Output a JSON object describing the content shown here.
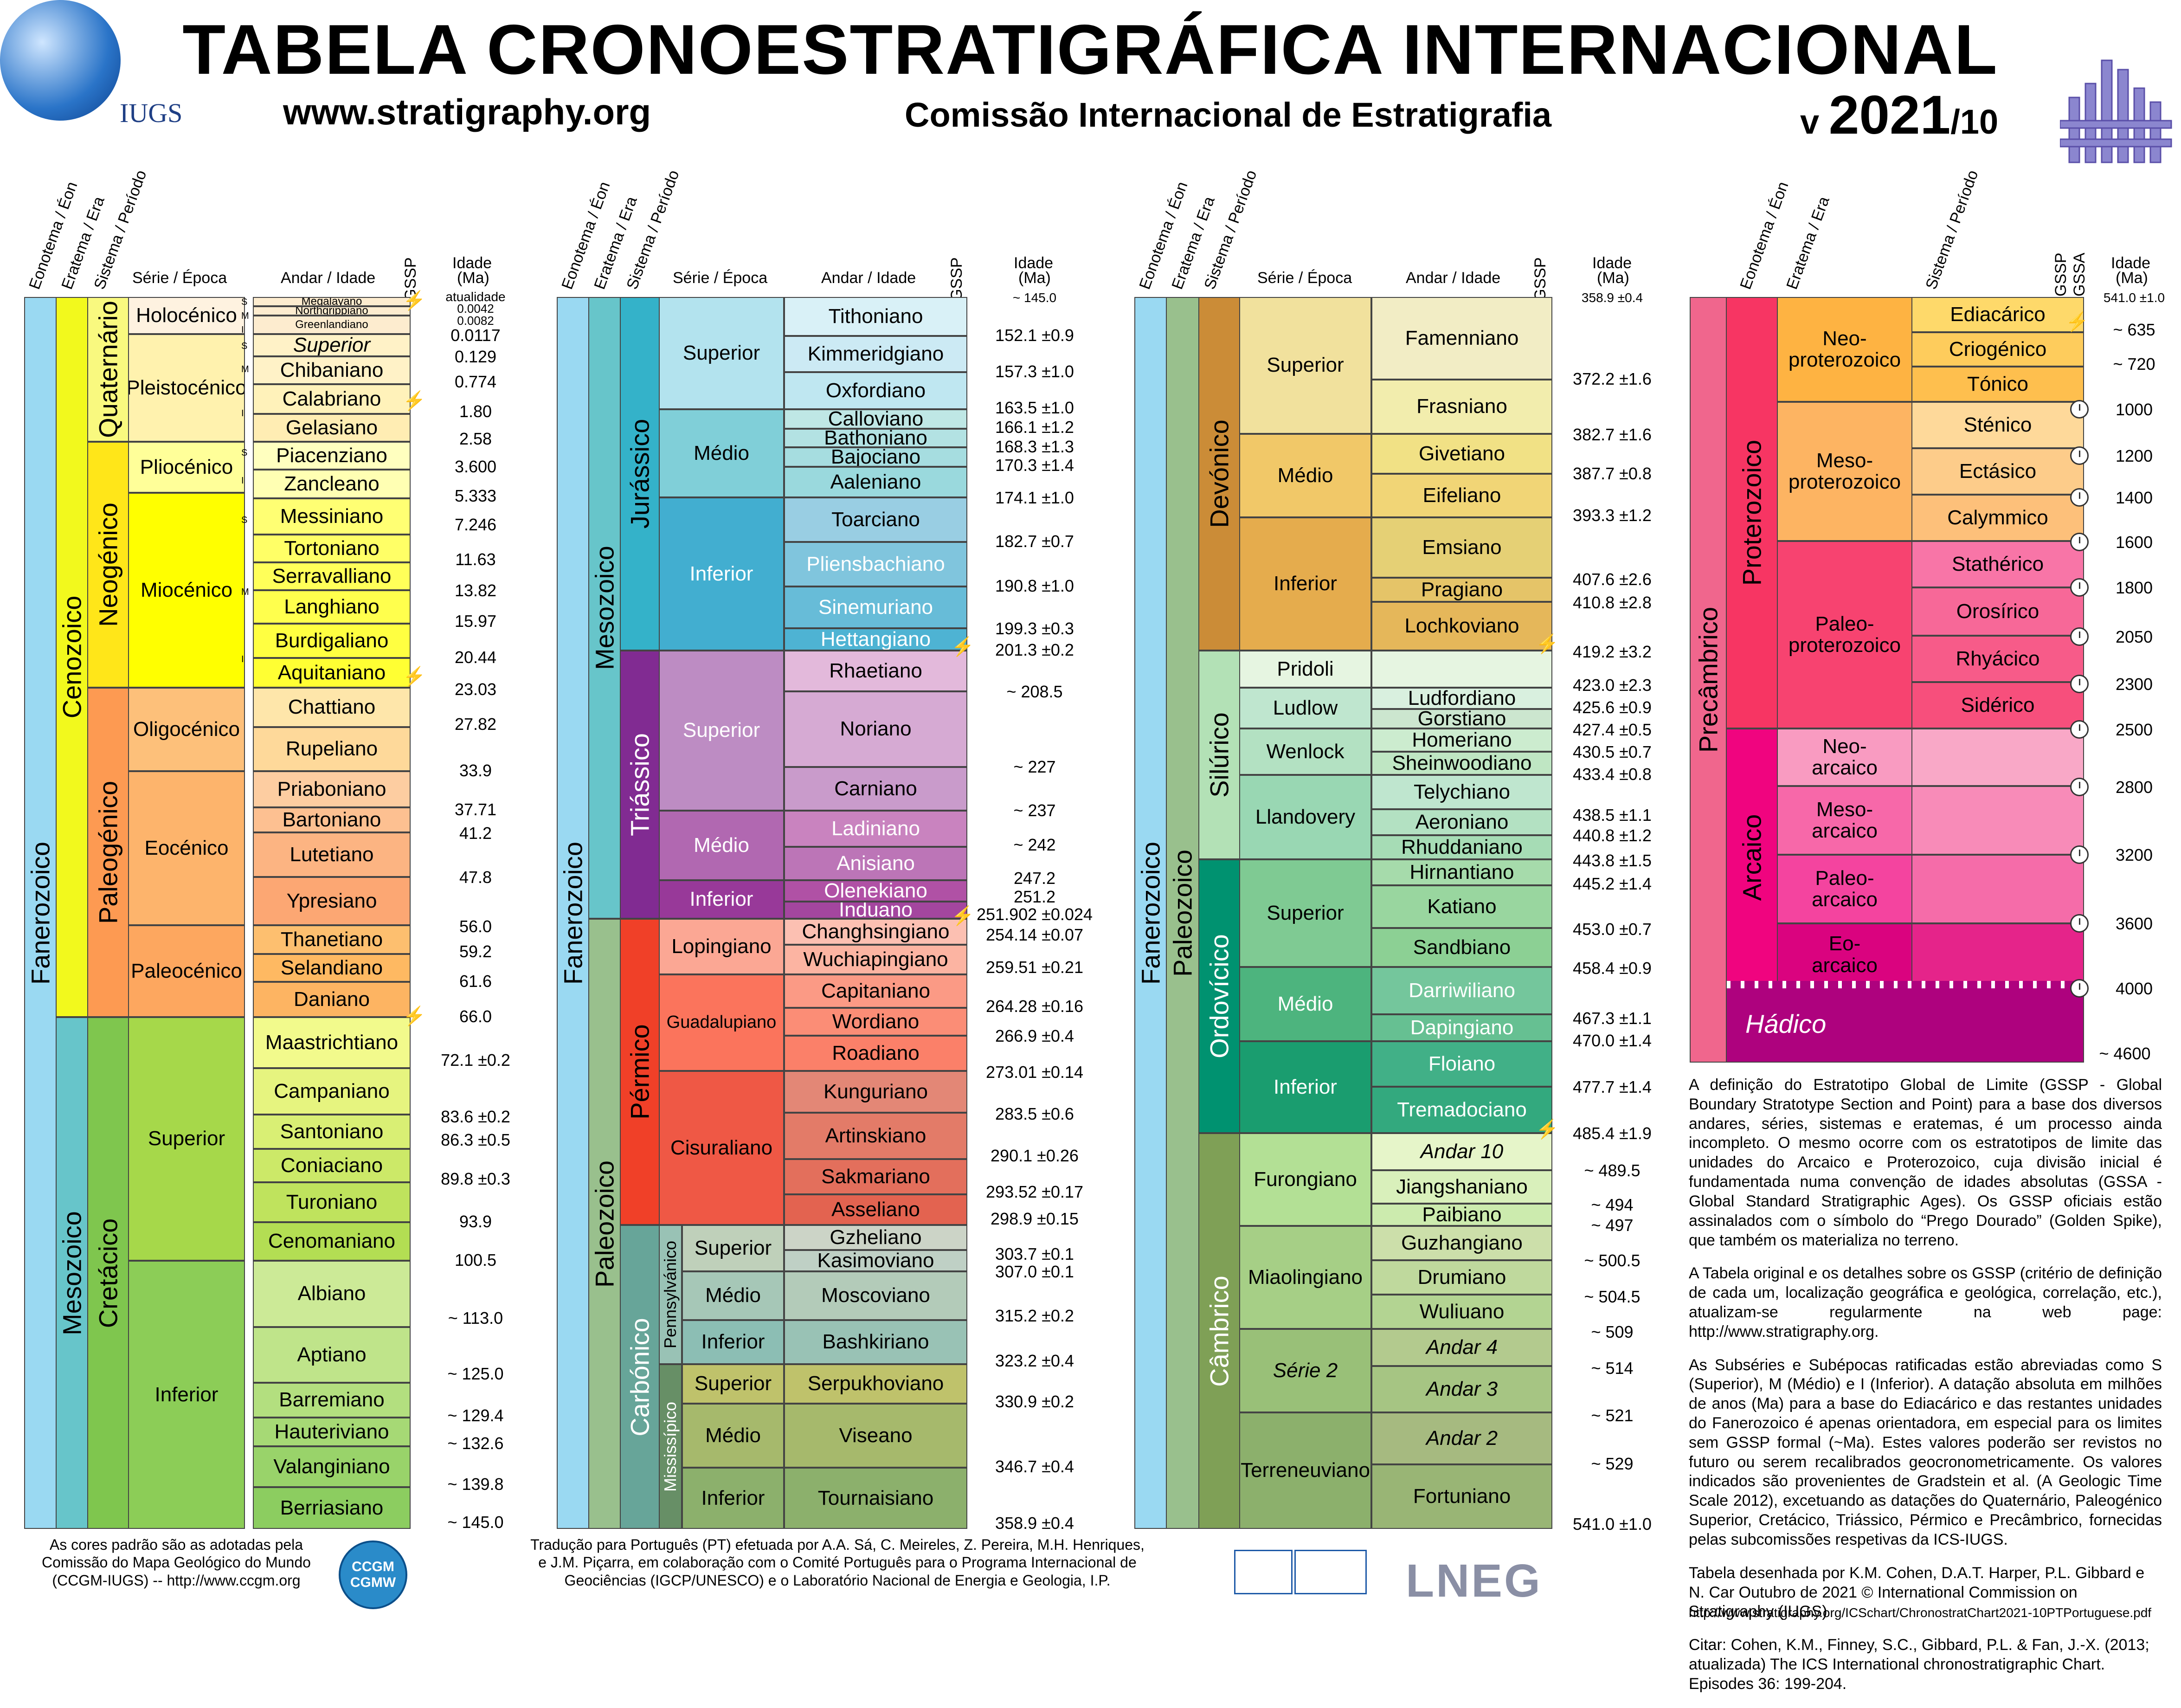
{
  "header": {
    "title": "TABELA CRONOESTRATIGRÁFICA INTERNACIONAL",
    "url": "www.stratigraphy.org",
    "commission": "Comissão Internacional de Estratigrafia",
    "version_prefix": "v ",
    "version_year": "2021",
    "version_suffix": "/10",
    "iugs_label": "IUGS"
  },
  "column_headers": {
    "eon": "Eonotema / Éon",
    "era": "Eratema / Era",
    "period": "Sistema / Período",
    "epoch": "Série / Época",
    "stage": "Andar / Idade",
    "gssp": "GSSP",
    "gssa": "GSSA",
    "age": "Idade",
    "age_unit": "(Ma)"
  },
  "col1": {
    "eon": "Fanerozoico",
    "era_ceno": "Cenozoico",
    "era_meso": "Mesozoico",
    "per_quat": "Quaternário",
    "per_neo": "Neogénico",
    "per_paleo": "Paleogénico",
    "per_cret": "Cretácico",
    "epochs": [
      "Holocénico",
      "Pleistocénico",
      "Pliocénico",
      "Miocénico",
      "Oligocénico",
      "Eocénico",
      "Paleocénico",
      "Superior",
      "Inferior"
    ],
    "stages": [
      "Megalayano",
      "Northgrippiano",
      "Greenlandiano",
      "Superior",
      "Chibaniano",
      "Calabriano",
      "Gelasiano",
      "Piacenziano",
      "Zancleano",
      "Messiniano",
      "Tortoniano",
      "Serravalliano",
      "Langhiano",
      "Burdigaliano",
      "Aquitaniano",
      "Chattiano",
      "Rupeliano",
      "Priaboniano",
      "Bartoniano",
      "Lutetiano",
      "Ypresiano",
      "Thanetiano",
      "Selandiano",
      "Daniano",
      "Maastrichtiano",
      "Campaniano",
      "Santoniano",
      "Coniaciano",
      "Turoniano",
      "Cenomaniano",
      "Albiano",
      "Aptiano",
      "Barremiano",
      "Hauteriviano",
      "Valanginiano",
      "Berriasiano"
    ],
    "subs": [
      "S",
      "M",
      "I",
      "S",
      "M",
      "I",
      "S",
      "I",
      "S",
      "M",
      "I"
    ],
    "ages": [
      "atualidade",
      "0.0042",
      "0.0082",
      "0.0117",
      "0.129",
      "0.774",
      "1.80",
      "2.58",
      "3.600",
      "5.333",
      "7.246",
      "11.63",
      "13.82",
      "15.97",
      "20.44",
      "23.03",
      "27.82",
      "33.9",
      "37.71",
      "41.2",
      "47.8",
      "56.0",
      "59.2",
      "61.6",
      "66.0",
      "72.1 ±0.2",
      "83.6 ±0.2",
      "86.3 ±0.5",
      "89.8 ±0.3",
      "93.9",
      "100.5",
      "~ 113.0",
      "~ 125.0",
      "~ 129.4",
      "~ 132.6",
      "~ 139.8",
      "~ 145.0"
    ]
  },
  "col2": {
    "eon": "Fanerozoico",
    "era_meso": "Mesozoico",
    "era_paleo": "Paleozoico",
    "per_jur": "Jurássico",
    "per_tri": "Triássico",
    "per_perm": "Pérmico",
    "per_carb": "Carbónico",
    "sub_penn": "Pennsylvánico",
    "sub_miss": "Mississípico",
    "epochs": [
      "Superior",
      "Médio",
      "Inferior",
      "Superior",
      "Médio",
      "Inferior",
      "Lopingiano",
      "Guadalupiano",
      "Cisuraliano",
      "Superior",
      "Médio",
      "Inferior",
      "Superior",
      "Médio",
      "Inferior"
    ],
    "stages": [
      "Tithoniano",
      "Kimmeridgiano",
      "Oxfordiano",
      "Calloviano",
      "Bathoniano",
      "Bajociano",
      "Aaleniano",
      "Toarciano",
      "Pliensbachiano",
      "Sinemuriano",
      "Hettangiano",
      "Rhaetiano",
      "Noriano",
      "Carniano",
      "Ladiniano",
      "Anisiano",
      "Olenekiano",
      "Induano",
      "Changhsingiano",
      "Wuchiapingiano",
      "Capitaniano",
      "Wordiano",
      "Roadiano",
      "Kunguriano",
      "Artinskiano",
      "Sakmariano",
      "Asseliano",
      "Gzheliano",
      "Kasimoviano",
      "Moscoviano",
      "Bashkiriano",
      "Serpukhoviano",
      "Viseano",
      "Tournaisiano"
    ],
    "ages": [
      "~ 145.0",
      "152.1 ±0.9",
      "157.3 ±1.0",
      "163.5 ±1.0",
      "166.1 ±1.2",
      "168.3 ±1.3",
      "170.3 ±1.4",
      "174.1 ±1.0",
      "182.7 ±0.7",
      "190.8 ±1.0",
      "199.3 ±0.3",
      "201.3 ±0.2",
      "~ 208.5",
      "~ 227",
      "~ 237",
      "~ 242",
      "247.2",
      "251.2",
      "251.902 ±0.024",
      "254.14 ±0.07",
      "259.51 ±0.21",
      "264.28 ±0.16",
      "266.9 ±0.4",
      "273.01 ±0.14",
      "283.5 ±0.6",
      "290.1 ±0.26",
      "293.52 ±0.17",
      "298.9 ±0.15",
      "303.7 ±0.1",
      "307.0 ±0.1",
      "315.2 ±0.2",
      "323.2 ±0.4",
      "330.9 ±0.2",
      "346.7 ±0.4",
      "358.9 ±0.4"
    ]
  },
  "col3": {
    "eon": "Fanerozoico",
    "era": "Paleozoico",
    "per_dev": "Devónico",
    "per_sil": "Silúrico",
    "per_ord": "Ordovícico",
    "per_camb": "Câmbrico",
    "epochs": [
      "Superior",
      "Médio",
      "Inferior",
      "Pridoli",
      "Ludlow",
      "Wenlock",
      "Llandovery",
      "Superior",
      "Médio",
      "Inferior",
      "Furongiano",
      "Miaolingiano",
      "Série 2",
      "Terreneuviano"
    ],
    "stages": [
      "Famenniano",
      "Frasniano",
      "Givetiano",
      "Eifeliano",
      "Emsiano",
      "Pragiano",
      "Lochkoviano",
      "Ludfordiano",
      "Gorstiano",
      "Homeriano",
      "Sheinwoodiano",
      "Telychiano",
      "Aeroniano",
      "Rhuddaniano",
      "Hirnantiano",
      "Katiano",
      "Sandbiano",
      "Darriwiliano",
      "Dapingiano",
      "Floiano",
      "Tremadociano",
      "Andar 10",
      "Jiangshaniano",
      "Paibiano",
      "Guzhangiano",
      "Drumiano",
      "Wuliuano",
      "Andar 4",
      "Andar 3",
      "Andar 2",
      "Fortuniano"
    ],
    "ages": [
      "358.9 ±0.4",
      "372.2 ±1.6",
      "382.7 ±1.6",
      "387.7 ±0.8",
      "393.3 ±1.2",
      "407.6 ±2.6",
      "410.8 ±2.8",
      "419.2 ±3.2",
      "423.0 ±2.3",
      "425.6 ±0.9",
      "427.4 ±0.5",
      "430.5 ±0.7",
      "433.4 ±0.8",
      "438.5 ±1.1",
      "440.8 ±1.2",
      "443.8 ±1.5",
      "445.2 ±1.4",
      "453.0 ±0.7",
      "458.4 ±0.9",
      "467.3 ±1.1",
      "470.0 ±1.4",
      "477.7 ±1.4",
      "485.4 ±1.9",
      "~ 489.5",
      "~ 494",
      "~ 497",
      "~ 500.5",
      "~ 504.5",
      "~ 509",
      "~ 514",
      "~ 521",
      "~ 529",
      "541.0 ±1.0"
    ]
  },
  "col4": {
    "eon_pre": "Precâmbrico",
    "eon_prot": "Proterozoico",
    "eon_arc": "Arcaico",
    "eras": [
      "Neo-\nproterozoico",
      "Meso-\nproterozoico",
      "Paleo-\nproterozoico",
      "Neo-\narcaico",
      "Meso-\narcaico",
      "Paleo-\narcaico",
      "Eo-\narcaico"
    ],
    "periods": [
      "Ediacárico",
      "Criogénico",
      "Tónico",
      "Sténico",
      "Ectásico",
      "Calymmico",
      "Stathérico",
      "Orosírico",
      "Rhyácico",
      "Sidérico"
    ],
    "hadean": "Hádico",
    "ages": [
      "541.0 ±1.0",
      "~ 635",
      "~ 720",
      "1000",
      "1200",
      "1400",
      "1600",
      "1800",
      "2050",
      "2300",
      "2500",
      "2800",
      "3200",
      "3600",
      "4000",
      "~ 4600"
    ]
  },
  "notes": [
    "A definição do Estratotipo Global de Limite (GSSP - Global Boundary Stratotype Section and Point) para a base dos diversos andares, séries, sistemas e eratemas, é um processo ainda incompleto. O mesmo ocorre com os estratotipos de limite das unidades do Arcaico e Proterozoico, cuja divisão inicial é fundamentada numa convenção de idades absolutas (GSSA - Global Standard Stratigraphic Ages). Os GSSP oficiais estão assinalados com o símbolo do “Prego Dourado” (Golden Spike), que também os materializa no terreno.",
    "A Tabela original e os detalhes sobre os GSSP (critério de definição de cada um, localização geográfica e geológica, correlação, etc.), atualizam-se regularmente na web page: http://www.stratigraphy.org.",
    "As Subséries e Subépocas ratificadas estão abreviadas como S (Superior), M (Médio) e I (Inferior). A datação absoluta em milhões de anos (Ma) para a base do Ediacárico e das restantes unidades do Fanerozoico é apenas orientadora, em especial para os limites sem GSSP formal (~Ma). Estes valores poderão ser revistos no futuro ou serem recalibrados geocronometricamente. Os valores indicados são provenientes de Gradstein et al. (A Geologic Time Scale 2012), excetuando as datações do Quaternário, Paleogénico Superior, Cretácico, Triássico, Pérmico e Precâmbrico, fornecidas pelas subcomissões respetivas da ICS-IUGS.",
    "Tabela desenhada por K.M. Cohen, D.A.T. Harper, P.L. Gibbard e N. Car Outubro de 2021 © International Commission on Stratigraphy (IUGS)",
    "Citar: Cohen, K.M., Finney, S.C., Gibbard, P.L. & Fan, J.-X. (2013; atualizada) The ICS International chronostratigraphic Chart. Episodes 36: 199-204."
  ],
  "footer": {
    "ccgm": "As cores padrão são as adotadas pela Comissão do Mapa Geológico do Mundo (CCGM-IUGS) -- http://www.ccgm.org",
    "ccgm_logo_top": "CCGM",
    "ccgm_logo_bottom": "CGMW",
    "translation": "Tradução para Português (PT) efetuada por A.A. Sá, C. Meireles, Z. Pereira, M.H. Henriques, e J.M. Piçarra, em colaboração com o Comité Português para o Programa Internacional de Geociências (IGCP/UNESCO) e o Laboratório Nacional de Energia e Geologia, I.P.",
    "lneg": "LNEG",
    "pdf_url": "http://www.stratigraphy.org/ICSchart/ChronostratChart2021-10PTPortuguese.pdf"
  },
  "colors": {
    "fanerozoico": "#9ad9f2",
    "cenozoico": "#f2f91d",
    "mesozoico": "#67c5ca",
    "paleozoico": "#99c08d",
    "quaternario": "#f9f97f",
    "neogenico": "#ffe619",
    "paleogenico": "#fd9a52",
    "cretacico": "#7fc64e",
    "jurassico": "#34b2c9",
    "triassico": "#812b92",
    "permico": "#f04028",
    "carbonico": "#67a599",
    "devonico": "#cb8c37",
    "silurico": "#b3e1b6",
    "ordovicico": "#009270",
    "cambrico": "#7fa056",
    "precambrico": "#f74370",
    "proterozoico": "#f73563",
    "arcaico": "#f0047f",
    "hadico": "#ae027e"
  }
}
